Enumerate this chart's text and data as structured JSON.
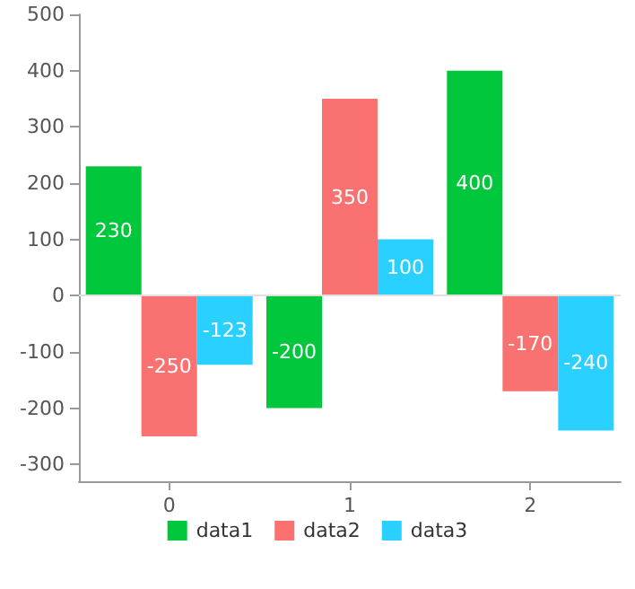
{
  "chart_data": {
    "type": "bar",
    "categories": [
      "0",
      "1",
      "2"
    ],
    "series": [
      {
        "name": "data1",
        "color": "#00c73c",
        "values": [
          230,
          -200,
          400
        ]
      },
      {
        "name": "data2",
        "color": "#fa7171",
        "values": [
          -250,
          350,
          -170
        ]
      },
      {
        "name": "data3",
        "color": "#2ad0ff",
        "values": [
          -123,
          100,
          -240
        ]
      }
    ],
    "ylim": [
      -330,
      500
    ],
    "yticks": [
      -300,
      -200,
      -100,
      0,
      100,
      200,
      300,
      400,
      500
    ],
    "ref_lines": [
      {
        "axis": "y",
        "value": 0,
        "color": "#e0e0e0"
      }
    ],
    "data_labels": true,
    "grid": false,
    "legend": "bottom"
  }
}
